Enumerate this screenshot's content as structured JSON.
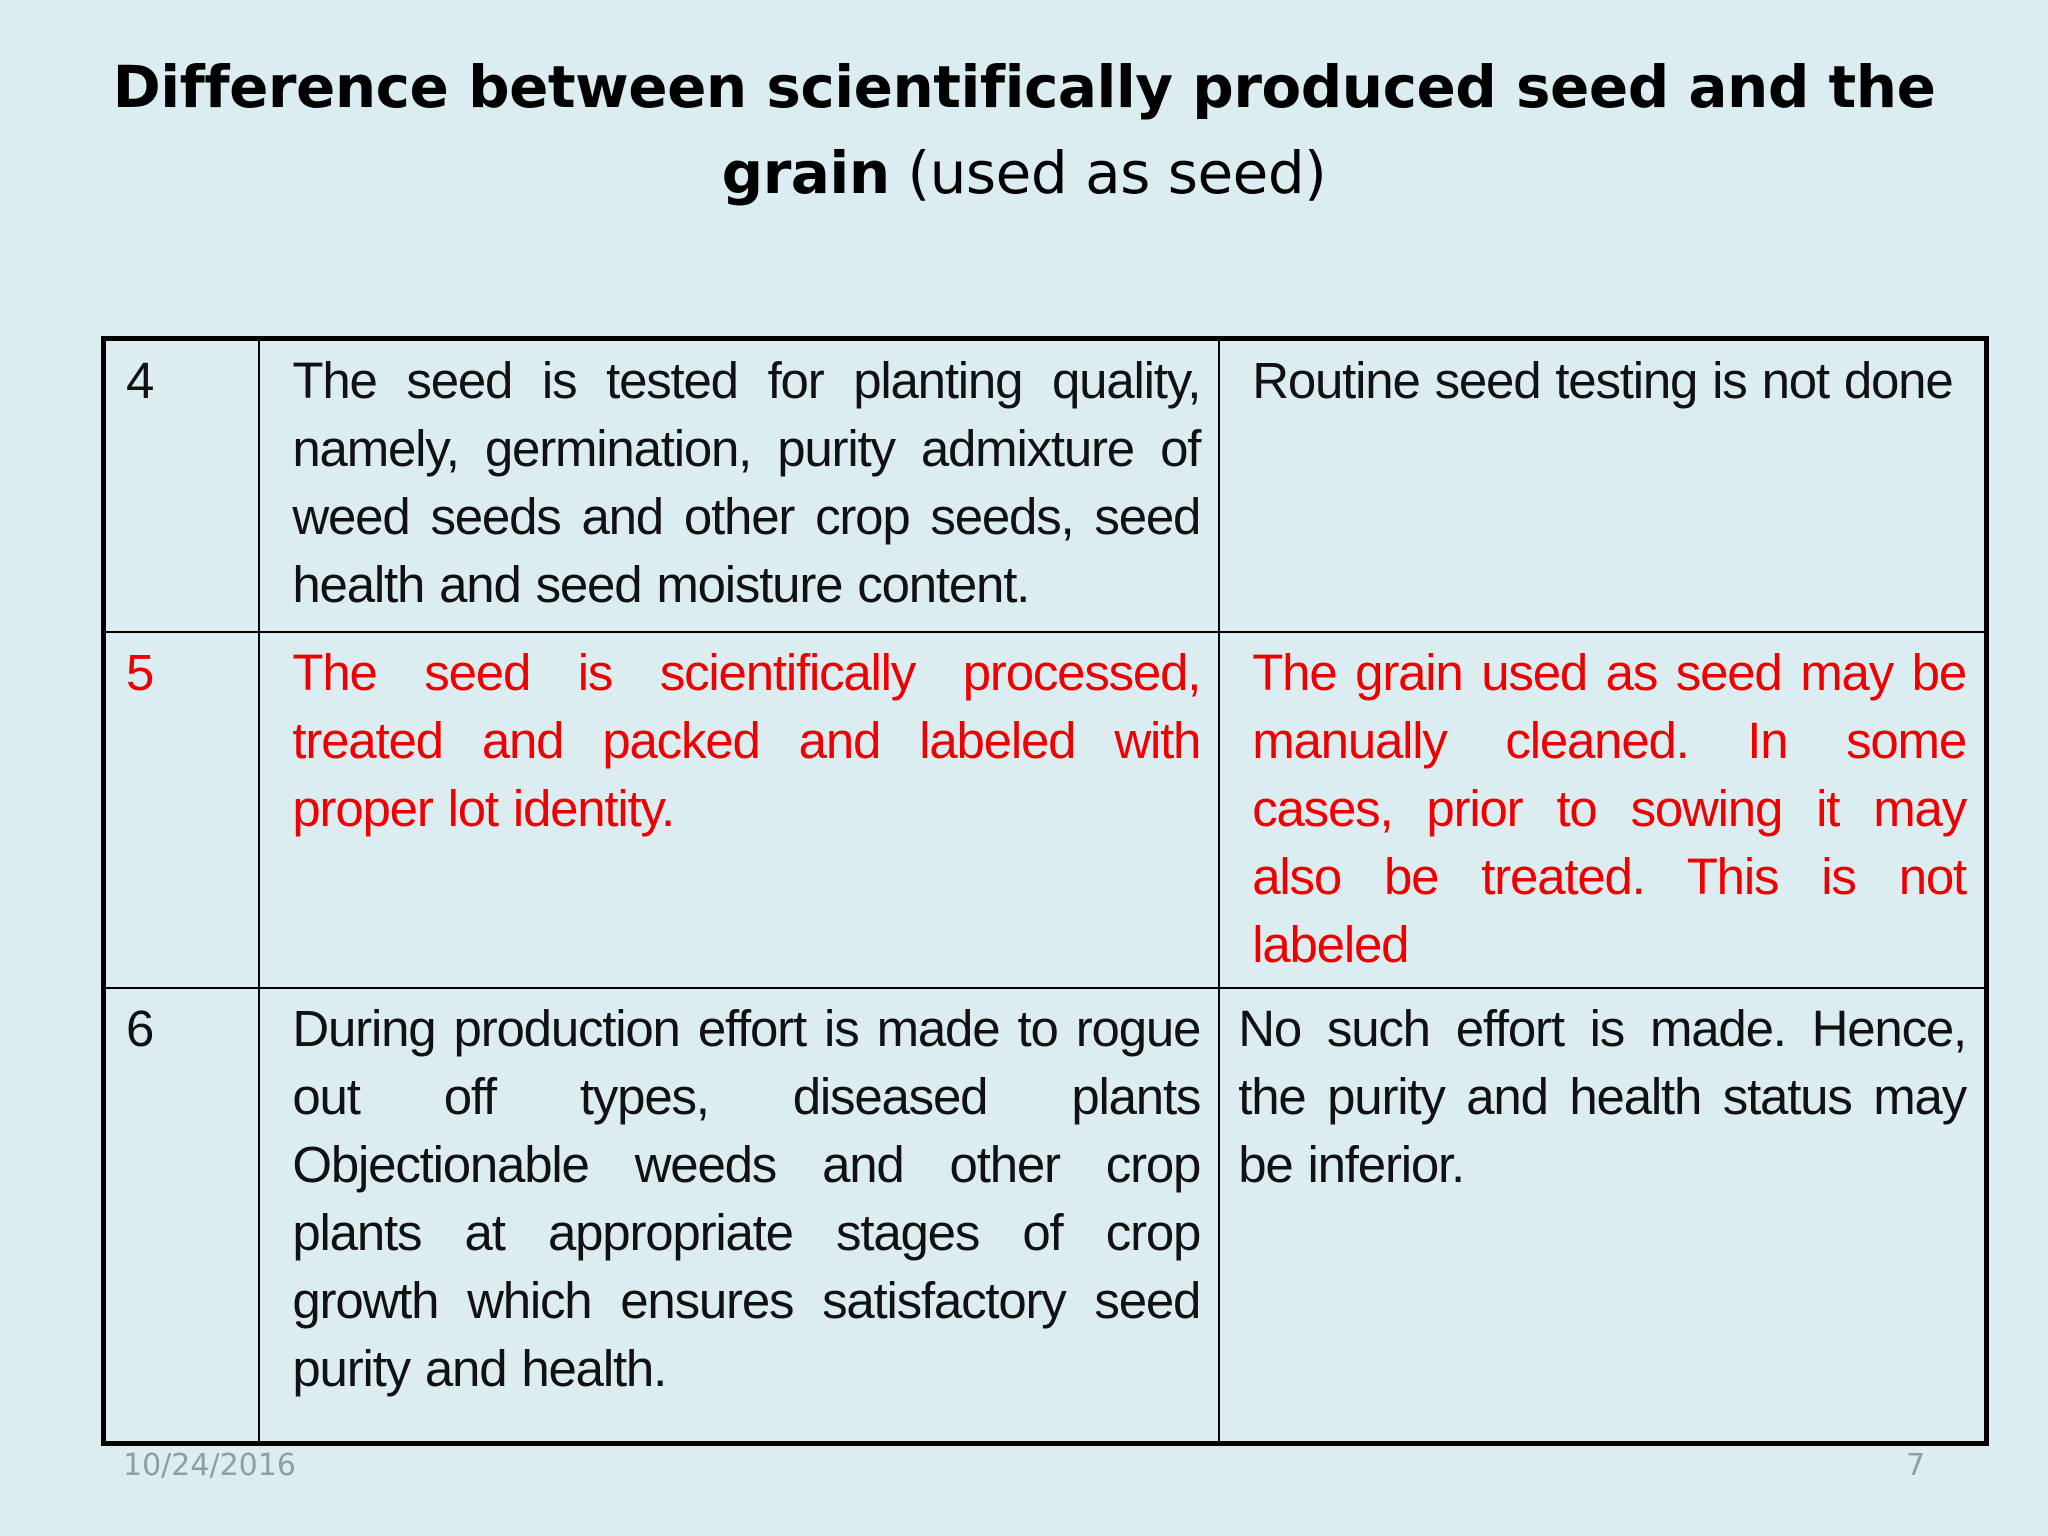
{
  "slide": {
    "title_bold": "Difference between scientifically produced seed and the grain",
    "title_normal": " (used as seed)",
    "footer_date": "10/24/2016",
    "page_number": "7"
  },
  "table": {
    "rows": [
      {
        "number": "4",
        "scientific_seed": "The seed is tested for planting quality, namely, germination, purity admixture of weed seeds and other crop seeds, seed health and seed moisture content.",
        "grain_as_seed": "Routine seed testing is not done",
        "highlight": false
      },
      {
        "number": "5",
        "scientific_seed": "The seed is scientifically processed, treated and packed and labeled with proper lot identity.",
        "grain_as_seed": "The grain used as seed may be manually cleaned. In some cases, prior to sowing it may also be treated. This is not labeled",
        "highlight": true
      },
      {
        "number": "6",
        "scientific_seed": "During production effort is made to rogue out off types, diseased plants Objectionable weeds and other crop plants at appropriate stages of crop growth which ensures satisfactory seed purity and health.",
        "grain_as_seed": "No such effort is made. Hence, the purity and health status may be inferior.",
        "highlight": false
      }
    ]
  },
  "colors": {
    "background": "#dcedf1",
    "highlight_text": "#ee0000",
    "body_text": "#111111",
    "footer_text": "#8f9ea3"
  }
}
